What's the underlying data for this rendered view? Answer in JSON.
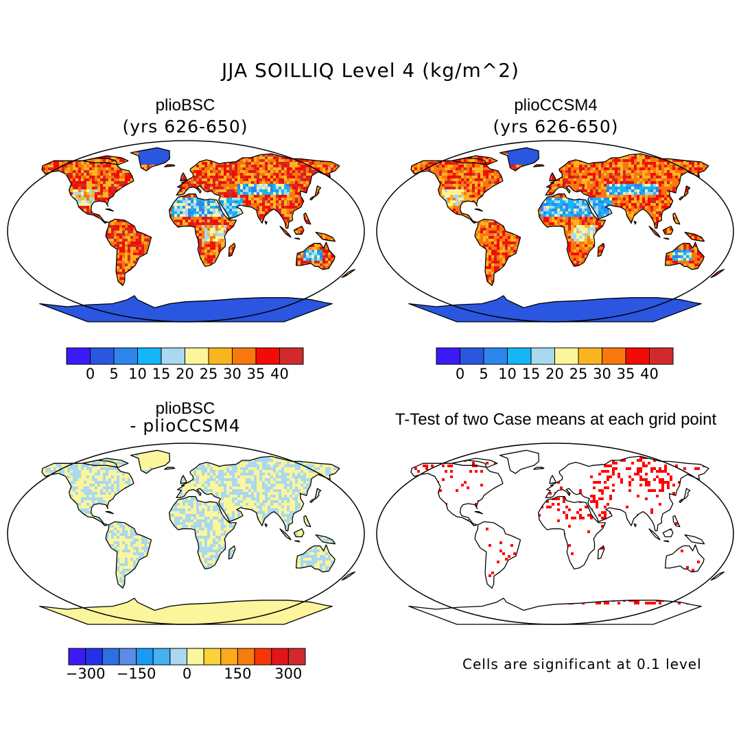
{
  "main_title": "JJA SOILLIQ Level 4 (kg/m^2)",
  "panels": [
    {
      "title": "plioBSC",
      "subtitle": "(yrs 626-650)"
    },
    {
      "title": "plioCCSM4",
      "subtitle": "(yrs 626-650)"
    },
    {
      "title": "plioBSC",
      "subtitle": "- plioCCSM4"
    },
    {
      "title": "T-Test of two Case means at each grid point",
      "subtitle": ""
    }
  ],
  "colorbar_abs": {
    "colors": [
      "#3b1bf5",
      "#2a56e0",
      "#2e86ec",
      "#14b6f5",
      "#a9d8ef",
      "#fbf59c",
      "#f9b520",
      "#f8780e",
      "#f40b05",
      "#d22a2c"
    ],
    "ticks": [
      "0",
      "5",
      "10",
      "15",
      "20",
      "25",
      "30",
      "35",
      "40"
    ]
  },
  "colorbar_diff": {
    "colors": [
      "#3b1bf5",
      "#2332e8",
      "#2e6fe2",
      "#5a8ee6",
      "#1a9af0",
      "#46b0f0",
      "#a9d8ef",
      "#fbf59c",
      "#fad23a",
      "#f9ab1d",
      "#f77b0e",
      "#f4360a",
      "#e2151a",
      "#d22a2c"
    ],
    "ticks": [
      "-300",
      "-150",
      "0",
      "150",
      "300"
    ]
  },
  "footnote": "Cells are significant at 0.1 level"
}
